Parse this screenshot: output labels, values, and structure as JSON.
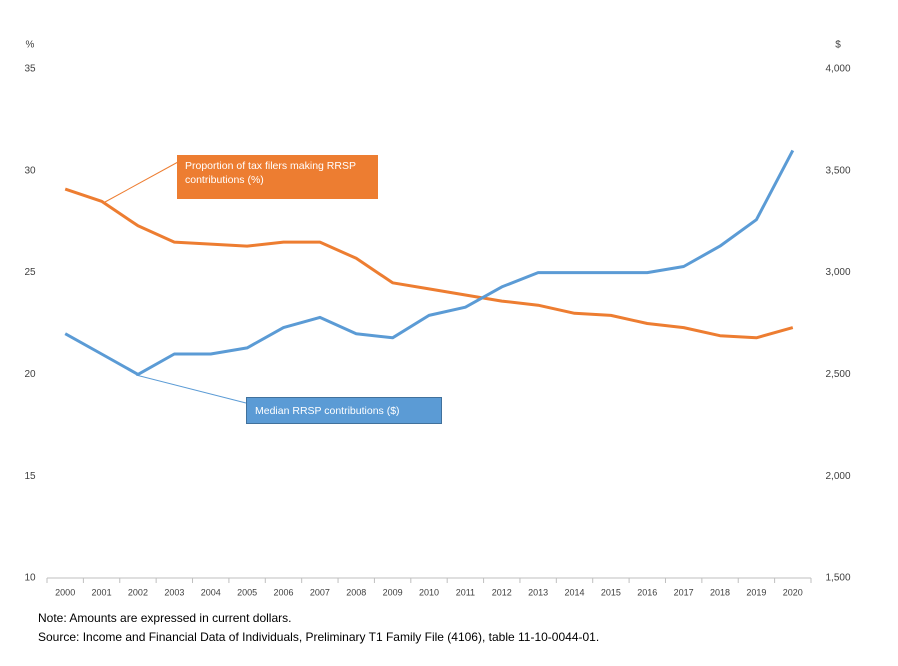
{
  "chart_data": {
    "type": "line",
    "y_unit": "%",
    "y2_unit": "$",
    "categories": [
      "2000",
      "2001",
      "2002",
      "2003",
      "2004",
      "2005",
      "2006",
      "2007",
      "2008",
      "2009",
      "2010",
      "2011",
      "2012",
      "2013",
      "2014",
      "2015",
      "2016",
      "2017",
      "2018",
      "2019",
      "2020"
    ],
    "series": [
      {
        "name": "Proportion of tax filers making RRSP contributions (%)",
        "color": "#ed7d31",
        "axis": "y",
        "values": [
          29.1,
          28.5,
          27.3,
          26.5,
          26.4,
          26.3,
          26.5,
          26.5,
          25.7,
          24.5,
          24.2,
          23.9,
          23.6,
          23.4,
          23.0,
          22.9,
          22.5,
          22.3,
          21.9,
          21.8,
          22.3
        ]
      },
      {
        "name": "Median RRSP contributions ($)",
        "color": "#5b9bd5",
        "axis": "y2",
        "values": [
          2700,
          2600,
          2500,
          2600,
          2600,
          2630,
          2730,
          2780,
          2700,
          2680,
          2790,
          2830,
          2930,
          3000,
          3000,
          3000,
          3000,
          3030,
          3130,
          3260,
          3600
        ]
      }
    ],
    "ylim": [
      10,
      35
    ],
    "yticks": [
      10,
      15,
      20,
      25,
      30,
      35
    ],
    "y2lim": [
      1500,
      4000
    ],
    "y2ticks": [
      {
        "value": 1500,
        "label": "1,500"
      },
      {
        "value": 2000,
        "label": "2,000"
      },
      {
        "value": 2500,
        "label": "2,500"
      },
      {
        "value": 3000,
        "label": "3,000"
      },
      {
        "value": 3500,
        "label": "3,500"
      },
      {
        "value": 4000,
        "label": "4,000"
      }
    ],
    "grid": false,
    "notes": [
      "Note: Amounts are expressed in current dollars.",
      "Source: Income and Financial Data of Individuals, Preliminary T1 Family File (4106), table 11-10-0044-01."
    ]
  }
}
